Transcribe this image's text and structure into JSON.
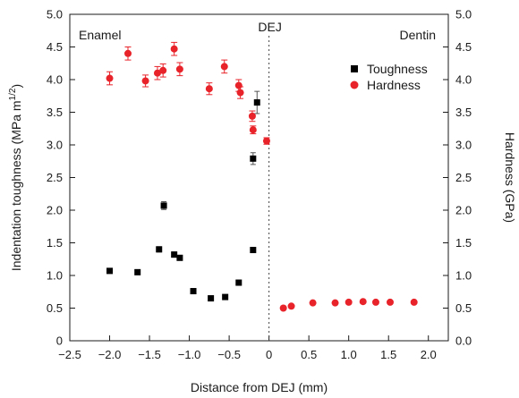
{
  "chart_data": {
    "type": "scatter",
    "xlabel": "Distance from  DEJ (mm)",
    "ylabel_left": "Indentation toughness (MPa m",
    "ylabel_left_sup": "1/2",
    "ylabel_left_close": ")",
    "ylabel_right": "Hardness (GPa)",
    "xlim": [
      -2.5,
      2.25
    ],
    "ylim_left": [
      0,
      5.0
    ],
    "ylim_right": [
      0,
      5.0
    ],
    "x_ticks": [
      -2.5,
      -2.0,
      -1.5,
      -1.0,
      -0.5,
      0,
      0.5,
      1.0,
      1.5,
      2.0
    ],
    "x_tick_labels": [
      "−2.5",
      "−2.0",
      "−1.5",
      "−1.0",
      "−0.5",
      "0",
      "0.5",
      "1.0",
      "1.5",
      "2.0"
    ],
    "y_ticks": [
      0,
      0.5,
      1.0,
      1.5,
      2.0,
      2.5,
      3.0,
      3.5,
      4.0,
      4.5,
      5.0
    ],
    "y_tick_labels": [
      "0",
      "0.5",
      "1.0",
      "1.5",
      "2.0",
      "2.5",
      "3.0",
      "3.5",
      "4.0",
      "4.5",
      "5.0"
    ],
    "y_tick_labels_right": [
      "0.0",
      "0.5",
      "1.0",
      "1.5",
      "2.0",
      "2.5",
      "3.0",
      "3.5",
      "4.0",
      "4.5",
      "5.0"
    ],
    "annotations": {
      "left_region": "Enamel",
      "right_region": "Dentin",
      "dej_label": "DEJ",
      "dej_x": 0
    },
    "legend_position": "top-right",
    "series": [
      {
        "name": "Toughness",
        "marker": "square",
        "color": "#000000",
        "axis": "left",
        "points": [
          {
            "x": -2.0,
            "y": 1.07,
            "err": 0
          },
          {
            "x": -1.65,
            "y": 1.05,
            "err": 0
          },
          {
            "x": -1.38,
            "y": 1.4,
            "err": 0.04
          },
          {
            "x": -1.32,
            "y": 2.07,
            "err": 0.06
          },
          {
            "x": -1.19,
            "y": 1.32,
            "err": 0.04
          },
          {
            "x": -1.12,
            "y": 1.27,
            "err": 0.03
          },
          {
            "x": -0.95,
            "y": 0.76,
            "err": 0
          },
          {
            "x": -0.73,
            "y": 0.65,
            "err": 0
          },
          {
            "x": -0.55,
            "y": 0.67,
            "err": 0
          },
          {
            "x": -0.38,
            "y": 0.89,
            "err": 0
          },
          {
            "x": -0.2,
            "y": 1.39,
            "err": 0
          },
          {
            "x": -0.2,
            "y": 2.79,
            "err": 0.09
          },
          {
            "x": -0.15,
            "y": 3.65,
            "err": 0.17
          }
        ]
      },
      {
        "name": "Hardness",
        "marker": "circle",
        "color": "#e8232a",
        "axis": "right",
        "points": [
          {
            "x": -2.0,
            "y": 4.02,
            "err": 0.1
          },
          {
            "x": -1.77,
            "y": 4.4,
            "err": 0.1
          },
          {
            "x": -1.55,
            "y": 3.98,
            "err": 0.09
          },
          {
            "x": -1.4,
            "y": 4.1,
            "err": 0.1
          },
          {
            "x": -1.33,
            "y": 4.14,
            "err": 0.1
          },
          {
            "x": -1.19,
            "y": 4.47,
            "err": 0.1
          },
          {
            "x": -1.12,
            "y": 4.16,
            "err": 0.1
          },
          {
            "x": -0.75,
            "y": 3.86,
            "err": 0.09
          },
          {
            "x": -0.56,
            "y": 4.2,
            "err": 0.1
          },
          {
            "x": -0.38,
            "y": 3.91,
            "err": 0.09
          },
          {
            "x": -0.36,
            "y": 3.8,
            "err": 0.09
          },
          {
            "x": -0.21,
            "y": 3.44,
            "err": 0.08
          },
          {
            "x": -0.2,
            "y": 3.23,
            "err": 0.06
          },
          {
            "x": -0.03,
            "y": 3.06,
            "err": 0.05
          },
          {
            "x": 0.18,
            "y": 0.5,
            "err": 0
          },
          {
            "x": 0.28,
            "y": 0.53,
            "err": 0
          },
          {
            "x": 0.55,
            "y": 0.58,
            "err": 0
          },
          {
            "x": 0.83,
            "y": 0.58,
            "err": 0
          },
          {
            "x": 1.0,
            "y": 0.59,
            "err": 0
          },
          {
            "x": 1.18,
            "y": 0.6,
            "err": 0
          },
          {
            "x": 1.34,
            "y": 0.59,
            "err": 0
          },
          {
            "x": 1.52,
            "y": 0.59,
            "err": 0
          },
          {
            "x": 1.82,
            "y": 0.59,
            "err": 0
          }
        ]
      }
    ]
  }
}
